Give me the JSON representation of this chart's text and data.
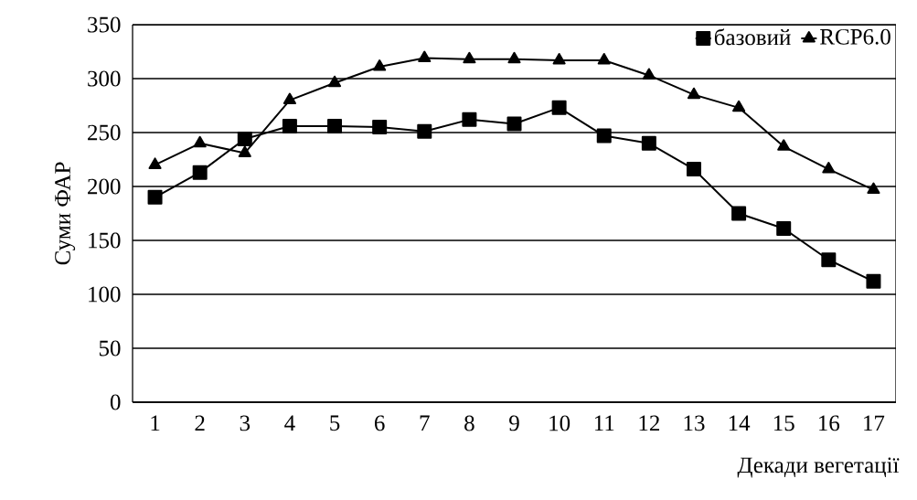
{
  "chart_data": {
    "type": "line",
    "xlabel": "Декади вегетації",
    "ylabel": "Суми ФАР",
    "categories": [
      "1",
      "2",
      "3",
      "4",
      "5",
      "6",
      "7",
      "8",
      "9",
      "10",
      "11",
      "12",
      "13",
      "14",
      "15",
      "16",
      "17"
    ],
    "series": [
      {
        "name": "базовий",
        "color": "#000000",
        "marker": "square",
        "values": [
          190,
          213,
          244,
          256,
          256,
          255,
          251,
          262,
          258,
          273,
          247,
          240,
          216,
          175,
          161,
          132,
          112
        ]
      },
      {
        "name": "RCP6.0",
        "color": "#000000",
        "marker": "triangle",
        "values": [
          220,
          240,
          231,
          280,
          296,
          311,
          319,
          318,
          318,
          317,
          317,
          303,
          285,
          273,
          237,
          216,
          197
        ]
      }
    ],
    "ylim": [
      0,
      350
    ],
    "yticks": [
      0,
      50,
      100,
      150,
      200,
      250,
      300,
      350
    ],
    "grid": "y",
    "legend": "top right",
    "line_style": "solid"
  }
}
